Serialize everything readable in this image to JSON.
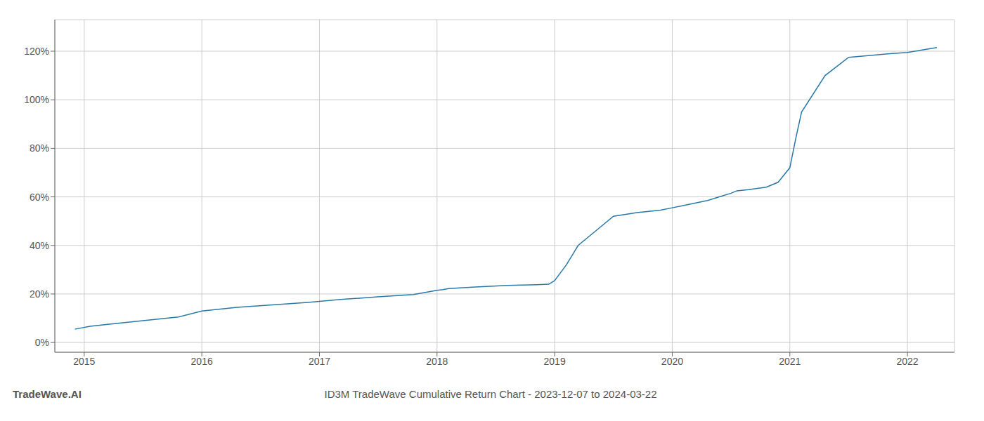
{
  "chart_data": {
    "type": "line",
    "title": "ID3M TradeWave Cumulative Return Chart - 2023-12-07 to 2024-03-22",
    "annotations": [
      "TradeWave.AI"
    ],
    "color": "#2878a8",
    "grid": true,
    "x": [
      2014.92,
      2015.05,
      2015.2,
      2015.5,
      2015.8,
      2016.0,
      2016.3,
      2016.6,
      2016.9,
      2017.2,
      2017.5,
      2017.8,
      2018.0,
      2018.05,
      2018.1,
      2018.3,
      2018.6,
      2018.85,
      2018.95,
      2019.0,
      2019.1,
      2019.15,
      2019.2,
      2019.35,
      2019.5,
      2019.7,
      2019.9,
      2020.0,
      2020.1,
      2020.2,
      2020.3,
      2020.4,
      2020.5,
      2020.55,
      2020.65,
      2020.8,
      2020.9,
      2021.0,
      2021.05,
      2021.1,
      2021.3,
      2021.5,
      2021.8,
      2022.0,
      2022.25
    ],
    "values": [
      0.055,
      0.067,
      0.075,
      0.09,
      0.105,
      0.13,
      0.145,
      0.155,
      0.165,
      0.178,
      0.188,
      0.198,
      0.215,
      0.218,
      0.222,
      0.228,
      0.235,
      0.238,
      0.24,
      0.255,
      0.32,
      0.36,
      0.4,
      0.46,
      0.52,
      0.535,
      0.545,
      0.555,
      0.565,
      0.575,
      0.585,
      0.6,
      0.615,
      0.625,
      0.63,
      0.64,
      0.66,
      0.72,
      0.84,
      0.95,
      1.1,
      1.175,
      1.188,
      1.195,
      1.215
    ],
    "xlim": [
      2014.75,
      2022.4
    ],
    "ylim": [
      -0.04,
      1.33
    ],
    "xticks": [
      2015,
      2016,
      2017,
      2018,
      2019,
      2020,
      2021,
      2022
    ],
    "yticks": [
      {
        "value": 0.0,
        "label": "0%"
      },
      {
        "value": 0.2,
        "label": "20%"
      },
      {
        "value": 0.4,
        "label": "40%"
      },
      {
        "value": 0.6,
        "label": "60%"
      },
      {
        "value": 0.8,
        "label": "80%"
      },
      {
        "value": 1.0,
        "label": "100%"
      },
      {
        "value": 1.2,
        "label": "120%"
      }
    ]
  }
}
